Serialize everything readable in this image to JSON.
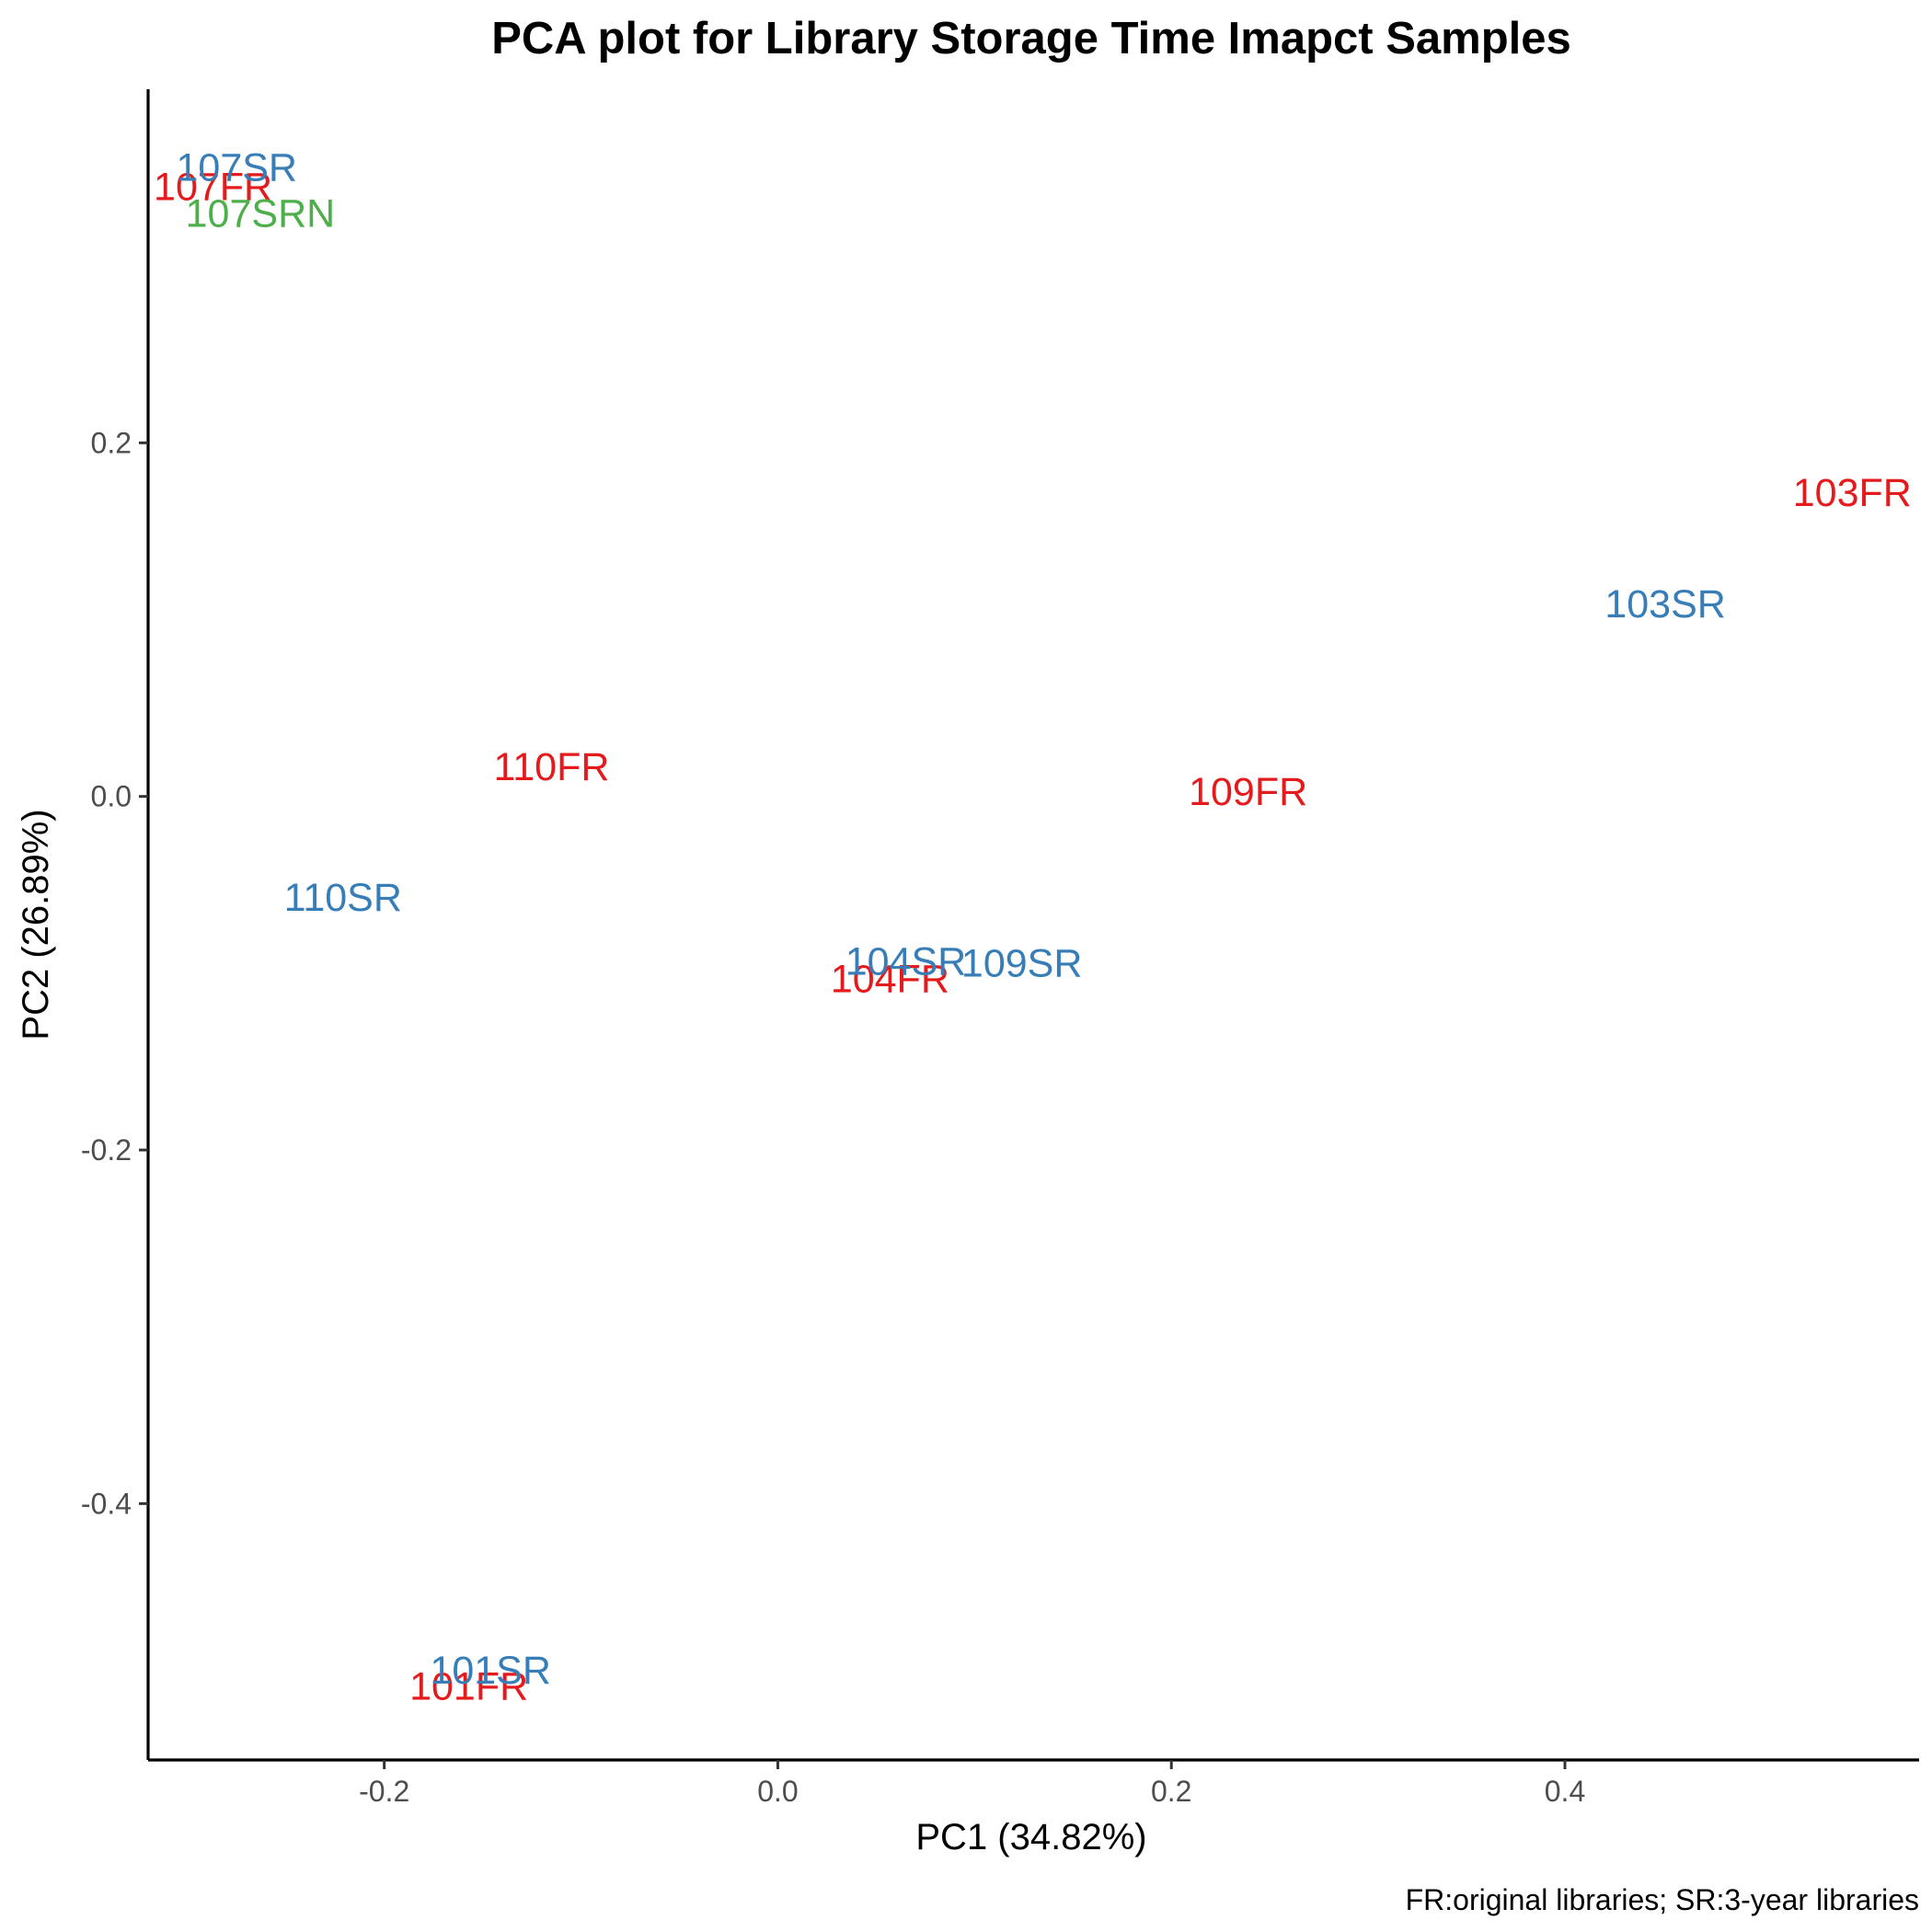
{
  "chart_data": {
    "type": "scatter",
    "title": "PCA plot for Library Storage Time Imapct Samples",
    "xlabel": "PC1 (34.82%)",
    "ylabel": "PC2 (26.89%)",
    "caption": "FR:original libraries; SR:3-year libraries",
    "xlim": [
      -0.32,
      0.58
    ],
    "ylim": [
      -0.545,
      0.4
    ],
    "xticks": [
      -0.2,
      0.0,
      0.2,
      0.4
    ],
    "xtick_labels": [
      "-0.2",
      "0.0",
      "0.2",
      "0.4"
    ],
    "yticks": [
      -0.4,
      -0.2,
      0.0,
      0.2
    ],
    "ytick_labels": [
      "-0.4",
      "-0.2",
      "0.0",
      "0.2"
    ],
    "grid": false,
    "legend": "none",
    "marker": "text-label",
    "series": [
      {
        "color": "#e41a1c",
        "points": [
          {
            "label": "107FR",
            "x": -0.287,
            "y": 0.345
          },
          {
            "label": "103FR",
            "x": 0.546,
            "y": 0.172
          },
          {
            "label": "110FR",
            "x": -0.115,
            "y": 0.017
          },
          {
            "label": "109FR",
            "x": 0.239,
            "y": 0.003
          },
          {
            "label": "104FR",
            "x": 0.057,
            "y": -0.103
          },
          {
            "label": "101FR",
            "x": -0.157,
            "y": -0.503
          }
        ]
      },
      {
        "color": "#377eb8",
        "points": [
          {
            "label": "107SR",
            "x": -0.275,
            "y": 0.356
          },
          {
            "label": "103SR",
            "x": 0.451,
            "y": 0.109
          },
          {
            "label": "110SR",
            "x": -0.221,
            "y": -0.057
          },
          {
            "label": "104SR",
            "x": 0.065,
            "y": -0.093
          },
          {
            "label": "109SR",
            "x": 0.124,
            "y": -0.094
          },
          {
            "label": "101SR",
            "x": -0.146,
            "y": -0.494
          }
        ]
      },
      {
        "color": "#4daf4a",
        "points": [
          {
            "label": "107SRN",
            "x": -0.263,
            "y": 0.33
          }
        ]
      }
    ]
  }
}
